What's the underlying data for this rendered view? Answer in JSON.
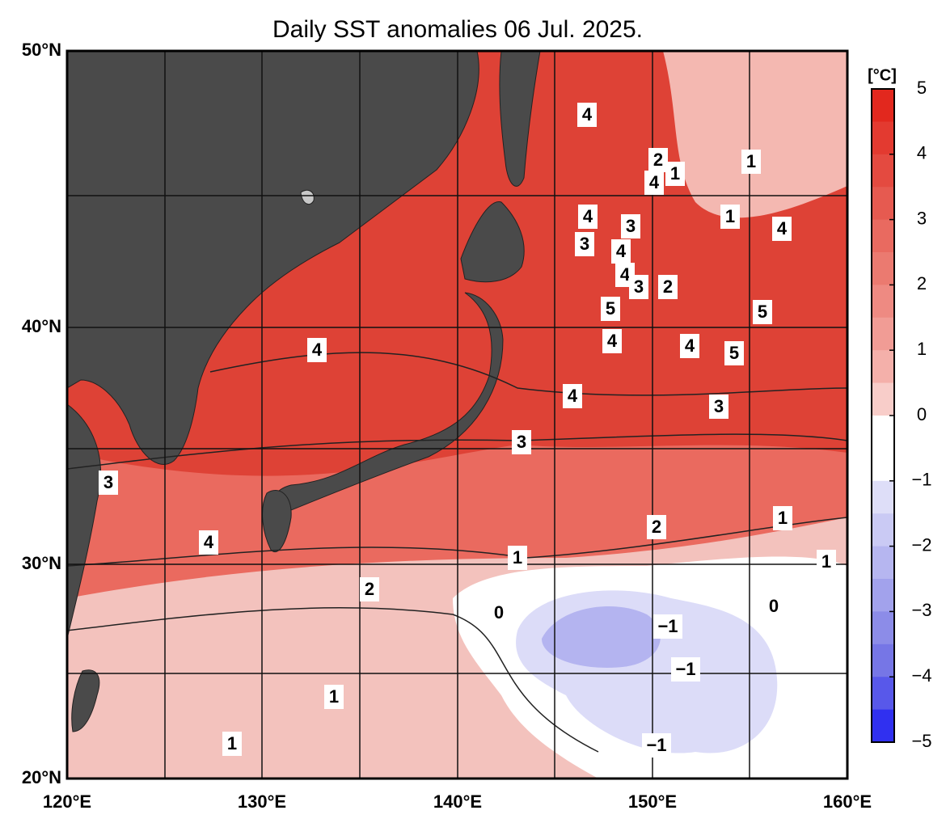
{
  "title": "Daily SST anomalies 06 Jul. 2025.",
  "axes": {
    "y_labels": [
      "50°N",
      "40°N",
      "30°N",
      "20°N"
    ],
    "x_labels": [
      "120°E",
      "130°E",
      "140°E",
      "150°E",
      "160°E"
    ]
  },
  "colorbar": {
    "unit": "[°C]",
    "labels": [
      "5",
      "4",
      "3",
      "2",
      "1",
      "0",
      "−1",
      "−2",
      "−3",
      "−4",
      "−5"
    ]
  },
  "contour_labels": [
    "4",
    "2",
    "1",
    "4",
    "1",
    "1",
    "4",
    "4",
    "3",
    "3",
    "4",
    "4",
    "3",
    "2",
    "5",
    "5",
    "4",
    "4",
    "5",
    "4",
    "4",
    "3",
    "3",
    "3",
    "4",
    "2",
    "1",
    "1",
    "1",
    "2",
    "0",
    "0",
    "−1",
    "−1",
    "1",
    "1",
    "−1"
  ]
}
